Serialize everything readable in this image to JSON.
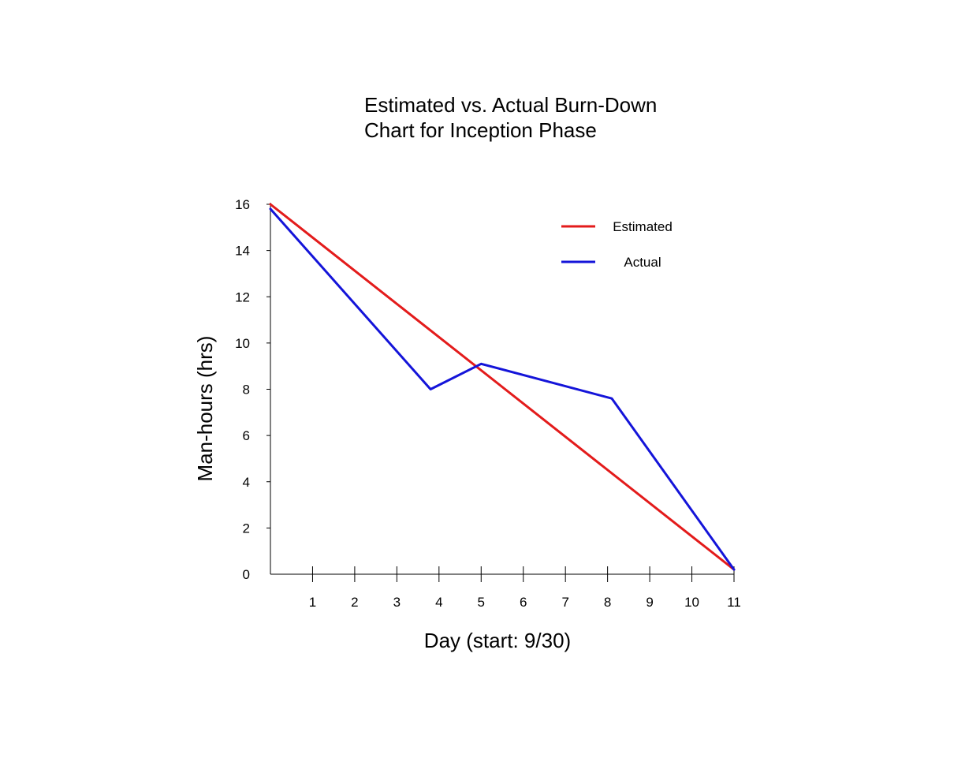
{
  "chart_data": {
    "type": "line",
    "title_lines": [
      "Estimated vs. Actual Burn-Down",
      "Chart for Inception Phase"
    ],
    "xlabel": "Day (start: 9/30)",
    "ylabel": "Man-hours (hrs)",
    "xlim": [
      0,
      11
    ],
    "ylim": [
      0,
      16
    ],
    "x_ticks": [
      1,
      2,
      3,
      4,
      5,
      6,
      7,
      8,
      9,
      10,
      11
    ],
    "y_ticks": [
      0,
      2,
      4,
      6,
      8,
      10,
      12,
      14,
      16
    ],
    "grid": false,
    "legend_position": "top-right",
    "series": [
      {
        "name": "Estimated",
        "color": "#e31b1b",
        "points": [
          [
            0,
            16
          ],
          [
            11,
            0.2
          ]
        ]
      },
      {
        "name": "Actual",
        "color": "#1414d9",
        "points": [
          [
            0,
            15.8
          ],
          [
            3.8,
            8
          ],
          [
            5,
            9.1
          ],
          [
            8.1,
            7.6
          ],
          [
            11,
            0.2
          ]
        ]
      }
    ]
  }
}
